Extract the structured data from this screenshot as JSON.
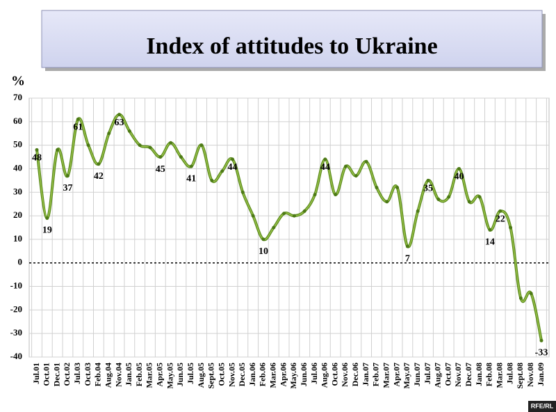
{
  "chart_data": {
    "type": "line",
    "title": "Index of attitudes to Ukraine",
    "y_label": "%",
    "source": "RFE/RL",
    "categories": [
      "Jul.01",
      "Oct.01",
      "Dec.01",
      "Oct.02",
      "Jul.03",
      "Oct.03",
      "Feb.04",
      "Aug.04",
      "Nov.04",
      "Jan.05",
      "Feb.05",
      "Mar.05",
      "Apr.05",
      "May.05",
      "Jun.05",
      "Jul.05",
      "Aug.05",
      "Sept.05",
      "Oct.05",
      "Nov.05",
      "Dec.05",
      "Jan.06",
      "Feb.06",
      "Mar.06",
      "Apr.06",
      "May.06",
      "Jun.06",
      "Jul.06",
      "Aug.06",
      "Oct.06",
      "Nov.06",
      "Dec.06",
      "Jan.07",
      "Feb.07",
      "Mar.07",
      "Apr.07",
      "May.07",
      "Jun.07",
      "Jul.07",
      "Aug.07",
      "Oct.07",
      "Nov.07",
      "Dec.07",
      "Jan.08",
      "Feb.08",
      "Mar.08",
      "Jul.08",
      "Sept.08",
      "Nov.08",
      "Jan.09"
    ],
    "values": [
      48,
      19,
      48,
      37,
      61,
      50,
      42,
      55,
      63,
      56,
      50,
      49,
      45,
      51,
      45,
      41,
      50,
      35,
      39,
      44,
      30,
      20,
      10,
      15,
      21,
      20,
      22,
      29,
      44,
      29,
      41,
      37,
      43,
      32,
      26,
      32,
      7,
      22,
      35,
      27,
      28,
      40,
      26,
      28,
      14,
      22,
      15,
      -15,
      -13,
      -33
    ],
    "value_labels": [
      "48",
      "19",
      null,
      "37",
      "61",
      null,
      "42",
      null,
      "63",
      null,
      null,
      null,
      "45",
      null,
      null,
      "41",
      null,
      null,
      null,
      "44",
      null,
      null,
      "10",
      null,
      null,
      null,
      null,
      null,
      "44",
      null,
      null,
      null,
      null,
      null,
      null,
      null,
      "7",
      null,
      "35",
      null,
      null,
      "40",
      null,
      null,
      "14",
      "22",
      null,
      null,
      null,
      "-33"
    ],
    "color": "#5b8c1e",
    "ylim": [
      -40,
      70
    ],
    "yticks": [
      -40,
      -30,
      -20,
      -10,
      0,
      10,
      20,
      30,
      40,
      50,
      60,
      70
    ],
    "grid": true
  }
}
